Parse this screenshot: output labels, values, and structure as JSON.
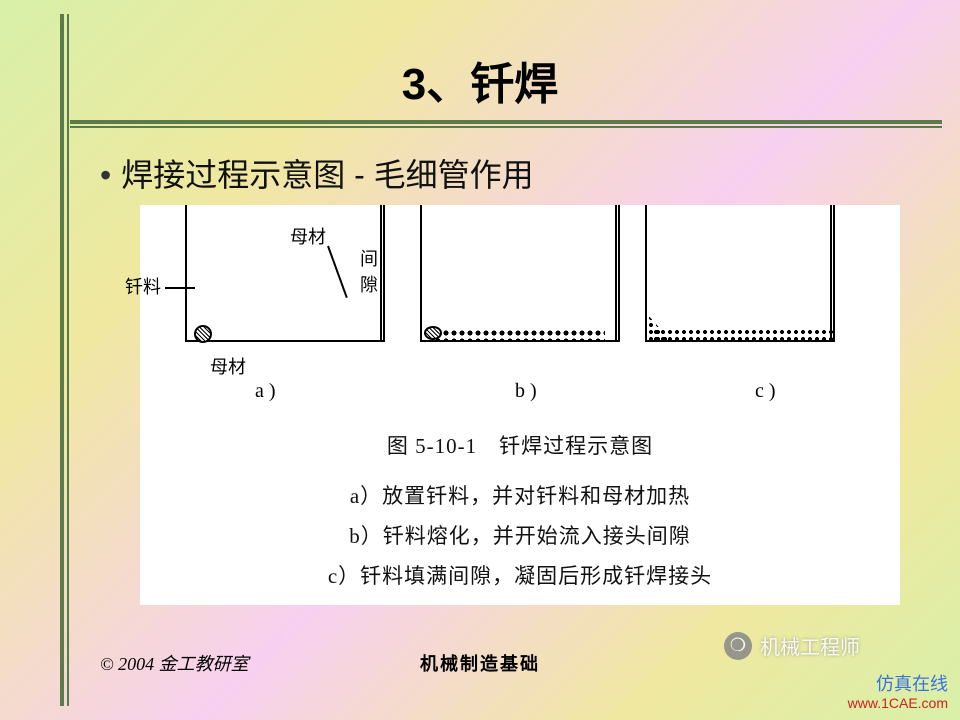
{
  "title": {
    "text": "3、钎焊",
    "fontsize": 44,
    "color": "#000000"
  },
  "subtitle": {
    "bullet": "•",
    "text": "焊接过程示意图 - 毛细管作用",
    "fontsize": 32
  },
  "labels": {
    "solder": "钎料",
    "base_top": "母材",
    "gap": "间隙",
    "base_bottom": "母材",
    "a": "a )",
    "b": "b )",
    "c": "c )"
  },
  "caption": {
    "fig": "图 5-10-1　钎焊过程示意图",
    "a": "a）放置钎料，并对钎料和母材加热",
    "b": "b）钎料熔化，并开始流入接头间隙",
    "c": "c）钎料填满间隙，凝固后形成钎焊接头"
  },
  "footer": {
    "left": "© 2004 金工教研室",
    "mid": "机械制造基础"
  },
  "watermark1": {
    "line1": "仿真在线",
    "line2": "www.1CAE.com"
  },
  "watermark2": {
    "icon": "�周",
    "text": "机械工程师"
  },
  "colors": {
    "rule": "#5b7c4a",
    "bg_stops": [
      "#d8f0a8",
      "#f0e8a0",
      "#f8d0f0"
    ],
    "figure_bg": "#ffffff",
    "text": "#000000"
  }
}
